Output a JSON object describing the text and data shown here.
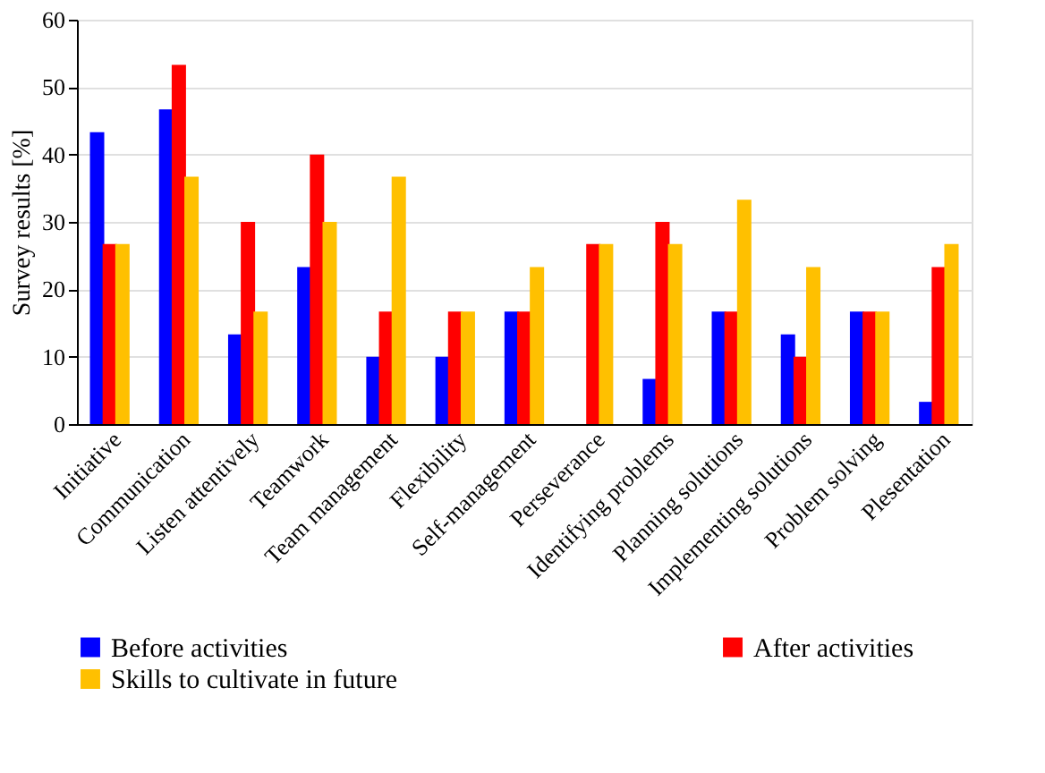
{
  "chart_data": {
    "type": "bar",
    "ylabel": "Survey results [%]",
    "categories": [
      "Initiative",
      "Communication",
      "Listen attentively",
      "Teamwork",
      "Team management",
      "Flexibility",
      "Self-management",
      "Perseverance",
      "Identifying problems",
      "Planning solutions",
      "Implementing solutions",
      "Problem solving",
      "Plesentation"
    ],
    "series": [
      {
        "name": "Before activities",
        "color": "#0000ff",
        "values": [
          43.3,
          46.7,
          13.3,
          23.3,
          10,
          10,
          16.7,
          0,
          6.7,
          16.7,
          13.3,
          16.7,
          3.3
        ]
      },
      {
        "name": "After activities",
        "color": "#ff0000",
        "values": [
          26.7,
          53.3,
          30,
          40,
          16.7,
          16.7,
          16.7,
          26.7,
          30,
          16.7,
          10,
          16.7,
          23.3
        ]
      },
      {
        "name": "Skills to cultivate in future",
        "color": "#ffc000",
        "values": [
          26.7,
          36.7,
          16.7,
          30,
          36.7,
          16.7,
          23.3,
          26.7,
          26.7,
          33.3,
          23.3,
          16.7,
          26.7
        ]
      }
    ],
    "ylim": [
      0,
      60
    ],
    "yticks": [
      0,
      10,
      20,
      30,
      40,
      50,
      60
    ],
    "grid": "y",
    "legend": "bottom"
  }
}
